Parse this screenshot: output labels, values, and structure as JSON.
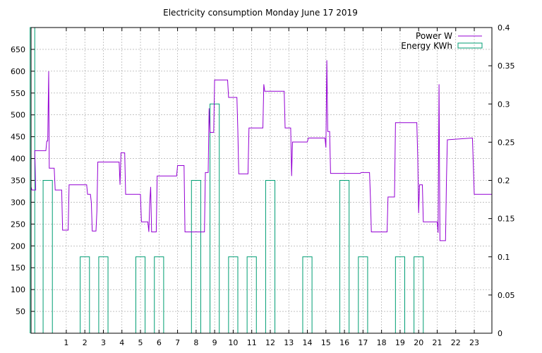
{
  "chart_data": {
    "type": "line",
    "title": "Electricity consumption Monday June 17 2019",
    "xlim": [
      -0.9,
      23.95
    ],
    "xticks": [
      1,
      2,
      3,
      4,
      5,
      6,
      7,
      8,
      9,
      10,
      11,
      12,
      13,
      14,
      15,
      16,
      17,
      18,
      19,
      20,
      21,
      22,
      23
    ],
    "y1lim": [
      0,
      700
    ],
    "y1ticks": [
      50,
      100,
      150,
      200,
      250,
      300,
      350,
      400,
      450,
      500,
      550,
      600,
      650
    ],
    "y2lim": [
      0,
      0.4
    ],
    "y2ticks": [
      "0",
      "0.05",
      "0.1",
      "0.15",
      "0.2",
      "0.25",
      "0.3",
      "0.35",
      "0.4"
    ],
    "grid": true,
    "legend_position": "top-right",
    "series": [
      {
        "name": "Power W",
        "axis": "y1",
        "style": "line",
        "color": "#9400d3",
        "points": [
          [
            -0.9,
            335
          ],
          [
            -0.85,
            328
          ],
          [
            -0.65,
            328
          ],
          [
            -0.7,
            418
          ],
          [
            -0.1,
            418
          ],
          [
            -0.05,
            440
          ],
          [
            0.0,
            440
          ],
          [
            0.05,
            600
          ],
          [
            0.08,
            378
          ],
          [
            0.35,
            378
          ],
          [
            0.4,
            328
          ],
          [
            0.75,
            328
          ],
          [
            0.8,
            236
          ],
          [
            1.1,
            236
          ],
          [
            1.15,
            340
          ],
          [
            2.1,
            340
          ],
          [
            2.15,
            318
          ],
          [
            2.3,
            318
          ],
          [
            2.35,
            300
          ],
          [
            2.4,
            234
          ],
          [
            2.6,
            234
          ],
          [
            2.65,
            280
          ],
          [
            2.7,
            392
          ],
          [
            3.85,
            392
          ],
          [
            3.9,
            340
          ],
          [
            3.95,
            413
          ],
          [
            4.15,
            413
          ],
          [
            4.2,
            318
          ],
          [
            5.0,
            318
          ],
          [
            5.05,
            255
          ],
          [
            5.4,
            255
          ],
          [
            5.45,
            232
          ],
          [
            5.5,
            300
          ],
          [
            5.55,
            335
          ],
          [
            5.6,
            232
          ],
          [
            5.85,
            232
          ],
          [
            5.9,
            360
          ],
          [
            6.95,
            360
          ],
          [
            7.0,
            384
          ],
          [
            7.35,
            384
          ],
          [
            7.4,
            232
          ],
          [
            8.45,
            232
          ],
          [
            8.5,
            368
          ],
          [
            8.65,
            368
          ],
          [
            8.7,
            515
          ],
          [
            8.75,
            460
          ],
          [
            8.95,
            460
          ],
          [
            9.0,
            580
          ],
          [
            9.7,
            580
          ],
          [
            9.75,
            540
          ],
          [
            10.2,
            540
          ],
          [
            10.25,
            465
          ],
          [
            10.3,
            365
          ],
          [
            10.8,
            365
          ],
          [
            10.85,
            470
          ],
          [
            11.6,
            470
          ],
          [
            11.65,
            570
          ],
          [
            11.7,
            554
          ],
          [
            12.75,
            554
          ],
          [
            12.8,
            470
          ],
          [
            13.1,
            470
          ],
          [
            13.15,
            360
          ],
          [
            13.2,
            438
          ],
          [
            14.0,
            438
          ],
          [
            14.05,
            447
          ],
          [
            14.95,
            447
          ],
          [
            15.0,
            425
          ],
          [
            15.05,
            625
          ],
          [
            15.1,
            462
          ],
          [
            15.2,
            462
          ],
          [
            15.25,
            366
          ],
          [
            16.85,
            366
          ],
          [
            16.9,
            368
          ],
          [
            17.35,
            368
          ],
          [
            17.4,
            310
          ],
          [
            17.45,
            232
          ],
          [
            18.3,
            232
          ],
          [
            18.35,
            312
          ],
          [
            18.7,
            312
          ],
          [
            18.75,
            482
          ],
          [
            19.9,
            482
          ],
          [
            19.95,
            405
          ],
          [
            20.0,
            275
          ],
          [
            20.05,
            340
          ],
          [
            20.2,
            340
          ],
          [
            20.25,
            255
          ],
          [
            21.0,
            255
          ],
          [
            21.05,
            230
          ],
          [
            21.1,
            570
          ],
          [
            21.15,
            212
          ],
          [
            21.45,
            212
          ],
          [
            21.5,
            350
          ],
          [
            21.55,
            443
          ],
          [
            22.9,
            447
          ],
          [
            22.95,
            385
          ],
          [
            23.0,
            318
          ],
          [
            23.95,
            318
          ]
        ]
      },
      {
        "name": "Energy KWh",
        "axis": "y2",
        "style": "steps",
        "color": "#009e73",
        "bars": [
          [
            -0.95,
            -0.7,
            0.4
          ],
          [
            -0.25,
            0.25,
            0.2
          ],
          [
            1.75,
            2.25,
            0.1
          ],
          [
            2.75,
            3.25,
            0.1
          ],
          [
            4.75,
            5.25,
            0.1
          ],
          [
            5.75,
            6.25,
            0.1
          ],
          [
            7.75,
            8.25,
            0.2
          ],
          [
            8.75,
            9.25,
            0.3
          ],
          [
            9.75,
            10.25,
            0.1
          ],
          [
            10.75,
            11.25,
            0.1
          ],
          [
            11.75,
            12.25,
            0.2
          ],
          [
            13.75,
            14.25,
            0.1
          ],
          [
            15.75,
            16.25,
            0.2
          ],
          [
            16.75,
            17.25,
            0.1
          ],
          [
            18.75,
            19.25,
            0.1
          ],
          [
            19.75,
            20.25,
            0.1
          ]
        ]
      }
    ]
  }
}
